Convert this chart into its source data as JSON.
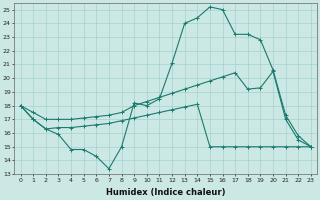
{
  "xlabel": "Humidex (Indice chaleur)",
  "ylabel": "",
  "bg_color": "#cce8e4",
  "grid_color": "#99cccc",
  "line_color": "#1a7a6e",
  "xlim": [
    -0.5,
    23.5
  ],
  "ylim": [
    13,
    25.5
  ],
  "xticks": [
    0,
    1,
    2,
    3,
    4,
    5,
    6,
    7,
    8,
    9,
    10,
    11,
    12,
    13,
    14,
    15,
    16,
    17,
    18,
    19,
    20,
    21,
    22,
    23
  ],
  "yticks": [
    13,
    14,
    15,
    16,
    17,
    18,
    19,
    20,
    21,
    22,
    23,
    24,
    25
  ],
  "line1_main": {
    "x": [
      0,
      1,
      2,
      3,
      4,
      5,
      6,
      7,
      8,
      9,
      10,
      11,
      12,
      13,
      14,
      15,
      16,
      17,
      18,
      19,
      20,
      21,
      22,
      23
    ],
    "y": [
      18,
      17,
      16.3,
      15.9,
      14.8,
      14.8,
      14.3,
      13.4,
      15,
      18.2,
      18,
      18.5,
      21.1,
      24,
      24.4,
      25.2,
      25,
      23.2,
      23.2,
      22.8,
      20.6,
      17.3,
      15.8,
      15
    ]
  },
  "line2_upper": {
    "x": [
      0,
      1,
      2,
      3,
      4,
      5,
      6,
      7,
      8,
      9,
      10,
      11,
      12,
      13,
      14,
      15,
      16,
      17,
      18,
      19,
      20,
      21,
      22,
      23
    ],
    "y": [
      18,
      17.5,
      17,
      17,
      17,
      17.1,
      17.2,
      17.3,
      17.5,
      18,
      18.3,
      18.6,
      18.9,
      19.2,
      19.5,
      19.8,
      20.1,
      20.4,
      19.2,
      19.3,
      20.5,
      17.0,
      15.5,
      15.0
    ]
  },
  "line3_lower": {
    "x": [
      0,
      1,
      2,
      3,
      4,
      5,
      6,
      7,
      8,
      9,
      10,
      11,
      12,
      13,
      14,
      15,
      16,
      17,
      18,
      19,
      20,
      21,
      22,
      23
    ],
    "y": [
      18,
      17,
      16.3,
      16.4,
      16.4,
      16.5,
      16.6,
      16.7,
      16.9,
      17.1,
      17.3,
      17.5,
      17.7,
      17.9,
      18.1,
      15.0,
      15.0,
      15.0,
      15.0,
      15.0,
      15.0,
      15.0,
      15.0,
      15.0
    ]
  }
}
